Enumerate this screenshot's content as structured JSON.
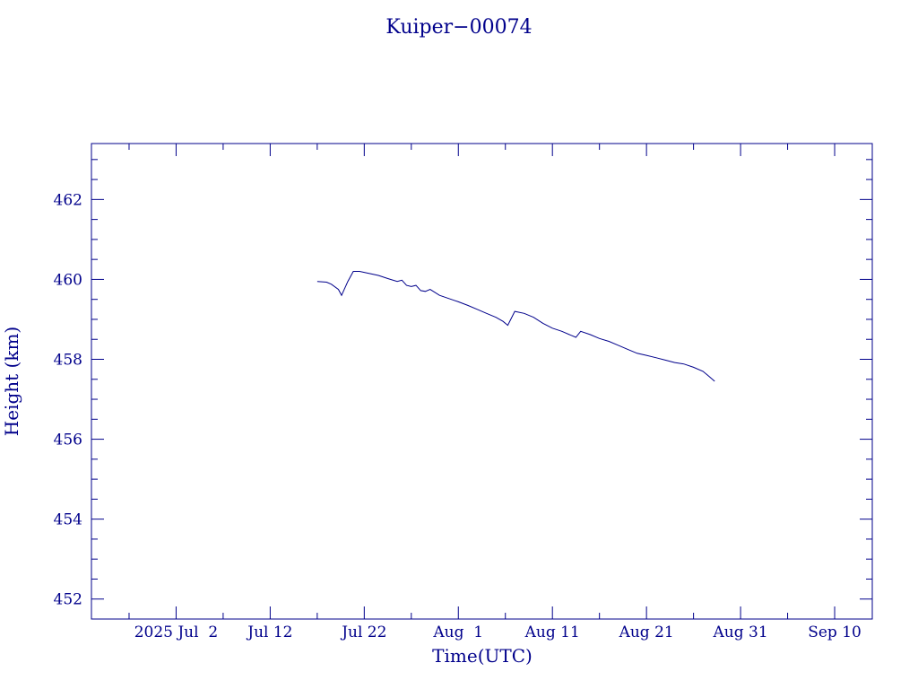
{
  "chart_data": {
    "type": "line",
    "title": "Kuiper−00074",
    "xlabel": "Time(UTC)",
    "ylabel": "Height (km)",
    "xlim": [
      "2025-06-23",
      "2025-09-14"
    ],
    "ylim": [
      451.5,
      463.4
    ],
    "yticks": [
      452,
      454,
      456,
      458,
      460,
      462
    ],
    "ytick_labels": [
      "452",
      "454",
      "456",
      "458",
      "460",
      "462"
    ],
    "xticks": [
      "2025-07-02",
      "2025-07-12",
      "2025-07-22",
      "2025-08-01",
      "2025-08-11",
      "2025-08-21",
      "2025-08-31",
      "2025-09-10"
    ],
    "xtick_labels": [
      "2025 Jul  2",
      "Jul 12",
      "Jul 22",
      "Aug  1",
      "Aug 11",
      "Aug 21",
      "Aug 31",
      "Sep 10"
    ],
    "grid": false,
    "colors": {
      "axes": "#00008b",
      "line": "#00008b",
      "text": "#00008b",
      "background": "#ffffff"
    },
    "series": [
      {
        "x": [
          "2025-07-17T00:00",
          "2025-07-18T00:00",
          "2025-07-18T12:00",
          "2025-07-19T06:00",
          "2025-07-19T14:00",
          "2025-07-20T06:00",
          "2025-07-20T20:00",
          "2025-07-21T12:00",
          "2025-07-22T12:00",
          "2025-07-23T12:00",
          "2025-07-24T12:00",
          "2025-07-25T12:00",
          "2025-07-26T00:00",
          "2025-07-26T12:00",
          "2025-07-27T00:00",
          "2025-07-27T12:00",
          "2025-07-28T00:00",
          "2025-07-28T12:00",
          "2025-07-29T00:00",
          "2025-07-30T00:00",
          "2025-07-31T00:00",
          "2025-08-01T00:00",
          "2025-08-02T00:00",
          "2025-08-03T00:00",
          "2025-08-04T00:00",
          "2025-08-05T00:00",
          "2025-08-05T18:00",
          "2025-08-06T06:00",
          "2025-08-07T00:00",
          "2025-08-08T00:00",
          "2025-08-09T00:00",
          "2025-08-10T00:00",
          "2025-08-11T00:00",
          "2025-08-12T00:00",
          "2025-08-13T00:00",
          "2025-08-13T12:00",
          "2025-08-14T00:00",
          "2025-08-15T00:00",
          "2025-08-16T00:00",
          "2025-08-17T00:00",
          "2025-08-18T00:00",
          "2025-08-19T00:00",
          "2025-08-20T00:00",
          "2025-08-21T00:00",
          "2025-08-22T00:00",
          "2025-08-23T00:00",
          "2025-08-24T00:00",
          "2025-08-25T00:00",
          "2025-08-26T00:00",
          "2025-08-27T00:00",
          "2025-08-27T12:00",
          "2025-08-28T06:00"
        ],
        "y": [
          459.95,
          459.93,
          459.88,
          459.75,
          459.6,
          459.95,
          460.2,
          460.2,
          460.15,
          460.1,
          460.02,
          459.95,
          459.98,
          459.85,
          459.82,
          459.85,
          459.72,
          459.7,
          459.75,
          459.6,
          459.52,
          459.44,
          459.35,
          459.25,
          459.15,
          459.05,
          458.95,
          458.85,
          459.2,
          459.15,
          459.05,
          458.9,
          458.78,
          458.7,
          458.6,
          458.55,
          458.7,
          458.62,
          458.52,
          458.45,
          458.35,
          458.25,
          458.15,
          458.1,
          458.04,
          457.98,
          457.92,
          457.88,
          457.8,
          457.7,
          457.6,
          457.45
        ]
      }
    ]
  }
}
